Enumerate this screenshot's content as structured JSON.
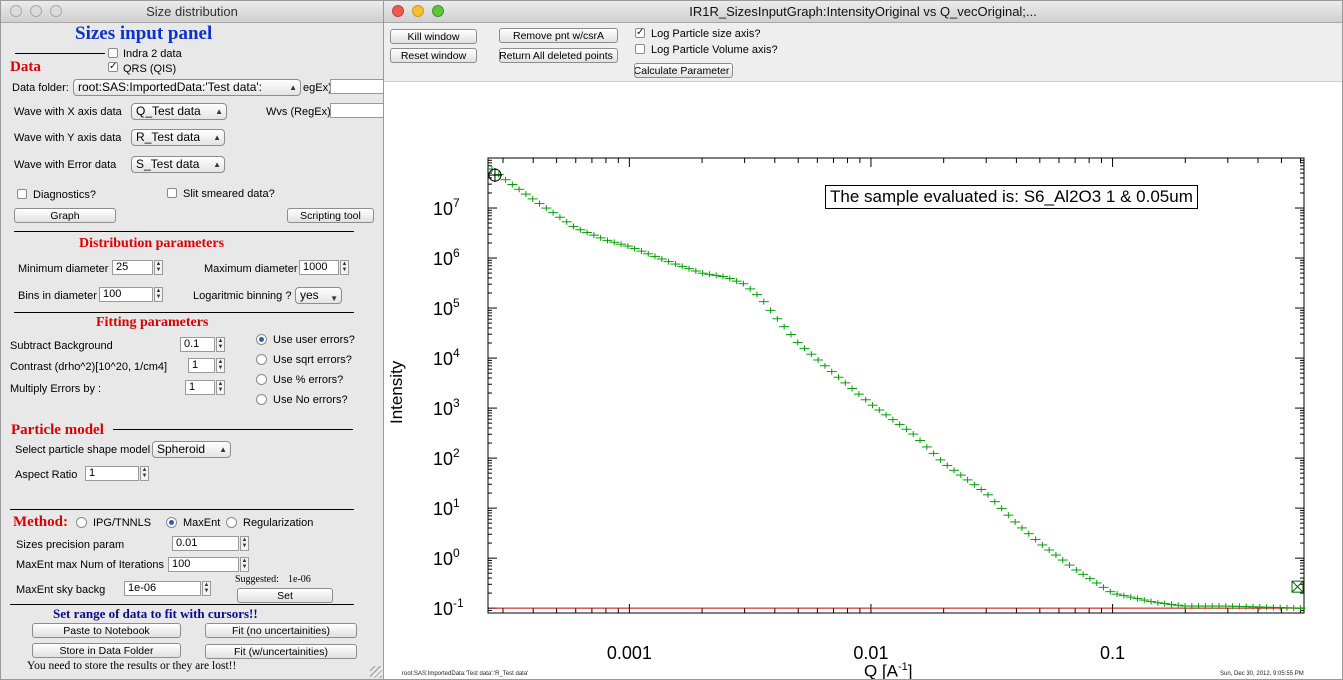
{
  "left_window": {
    "title": "Size distribution",
    "panel_title": "Sizes input panel",
    "data_header": "Data",
    "indra_label": "Indra 2 data",
    "qrs_label": "QRS (QIS)",
    "data_folder_label": "Data folder:",
    "data_folder_value": "root:SAS:ImportedData:'Test data':",
    "regex_label": "egEx)",
    "wave_x_label": "Wave with X axis data",
    "wave_x_value": "Q_Test data",
    "wvs_label": "Wvs (RegEx)",
    "wave_y_label": "Wave with Y axis data",
    "wave_y_value": "R_Test data",
    "wave_err_label": "Wave with Error data",
    "wave_err_value": "S_Test data",
    "diagnostics_label": "Diagnostics?",
    "slit_label": "Slit smeared data?",
    "graph_button": "Graph",
    "scripting_button": "Scripting tool",
    "dist_header": "Distribution parameters",
    "min_diam_label": "Minimum diameter",
    "min_diam_value": "25",
    "max_diam_label": "Maximum diameter",
    "max_diam_value": "1000",
    "bins_label": "Bins in diameter",
    "bins_value": "100",
    "log_bin_label": "Logaritmic binning ?",
    "log_bin_value": "yes",
    "fit_header": "Fitting parameters",
    "subtract_label": "Subtract Background",
    "subtract_value": "0.1",
    "contrast_label": "Contrast (drho^2)[10^20, 1/cm4]",
    "contrast_value": "1",
    "multiply_label": "Multiply Errors by :",
    "multiply_value": "1",
    "err_user": "Use user errors?",
    "err_sqrt": "Use sqrt errors?",
    "err_pct": "Use % errors?",
    "err_none": "Use No errors?",
    "particle_header": "Particle model",
    "shape_label": "Select particle shape model",
    "shape_value": "Spheroid",
    "aspect_label": "Aspect Ratio",
    "aspect_value": "1",
    "method_header": "Method:",
    "method_ipg": "IPG/TNNLS",
    "method_maxent": "MaxEnt",
    "method_reg": "Regularization",
    "precision_label": "Sizes precision param",
    "precision_value": "0.01",
    "iter_label": "MaxEnt max Num of Iterations",
    "iter_value": "100",
    "sky_label": "MaxEnt sky backg",
    "sky_value": "1e-06",
    "suggested_label": "Suggested:",
    "suggested_value": "1e-06",
    "set_button": "Set",
    "range_header": "Set range of data to fit with cursors!!",
    "paste_button": "Paste to Notebook",
    "fit_no_button": "Fit (no uncertainities)",
    "store_button": "Store in Data Folder",
    "fit_w_button": "Fit (w/uncertainities)",
    "warning": "You need to store the results or they are lost!!"
  },
  "graph_window": {
    "title": "IR1R_SizesInputGraph:IntensityOriginal vs Q_vecOriginal;...",
    "kill_button": "Kill window",
    "reset_button": "Reset window",
    "remove_button": "Remove pnt w/csrA",
    "return_button": "Return All deleted points",
    "log_size_label": "Log Particle size axis?",
    "log_vol_label": "Log Particle Volume axis?",
    "calc_button": "Calculate Parameter",
    "sample_label": "The sample evaluated is:  S6_Al2O3 1 & 0.05um",
    "footer_left": "root:SAS:ImportedData:'Test data':'R_Test data'",
    "footer_right": "Sun, Dec 30, 2012, 9:05:55 PM"
  },
  "chart_data": {
    "type": "scatter",
    "xlabel": "Q [A^-1]",
    "ylabel": "Intensity",
    "x_scale": "log",
    "y_scale": "log",
    "xlim": [
      0.00026,
      0.62
    ],
    "ylim": [
      0.08,
      100000000
    ],
    "x_ticks": [
      "0.001",
      "0.01",
      "0.1"
    ],
    "y_ticks": [
      "10^7",
      "10^6",
      "10^5",
      "10^4",
      "10^3",
      "10^2",
      "10^1",
      "10^0",
      "10^-1"
    ],
    "series": [
      {
        "color": "#00a000",
        "markers": "error-bars",
        "x_range": [
          0.00027,
          0.6
        ],
        "points": [
          [
            0.00027,
            60000000
          ],
          [
            0.0003,
            40000000
          ],
          [
            0.0004,
            15000000
          ],
          [
            0.0006,
            4000000
          ],
          [
            0.0008,
            2300000
          ],
          [
            0.001,
            1700000
          ],
          [
            0.0015,
            800000
          ],
          [
            0.002,
            500000
          ],
          [
            0.0025,
            420000
          ],
          [
            0.003,
            300000
          ],
          [
            0.0035,
            160000
          ],
          [
            0.004,
            70000
          ],
          [
            0.005,
            20000
          ],
          [
            0.007,
            5000
          ],
          [
            0.01,
            1200
          ],
          [
            0.015,
            300
          ],
          [
            0.02,
            80
          ],
          [
            0.03,
            20
          ],
          [
            0.04,
            5
          ],
          [
            0.05,
            2
          ],
          [
            0.07,
            0.6
          ],
          [
            0.1,
            0.2
          ],
          [
            0.15,
            0.13
          ],
          [
            0.2,
            0.11
          ],
          [
            0.3,
            0.11
          ],
          [
            0.6,
            0.1
          ]
        ]
      },
      {
        "color": "#cc0000",
        "markers": "line",
        "points": [
          [
            0.00027,
            0.1
          ],
          [
            0.6,
            0.1
          ]
        ]
      }
    ]
  }
}
